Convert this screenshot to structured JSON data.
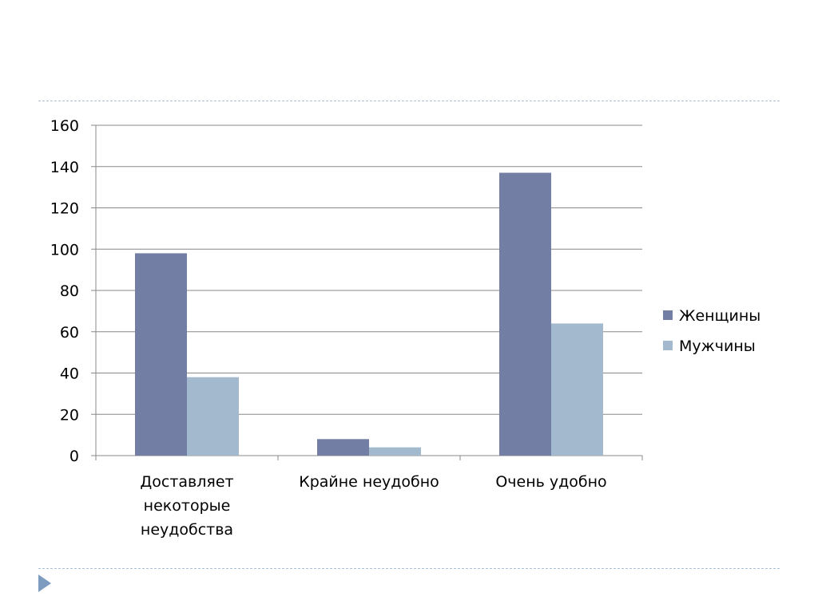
{
  "colors": {
    "series_1": "#727ea3",
    "series_2": "#a3b9ce",
    "gridline": "#888888",
    "divider": "#a9c0d6",
    "nav_arrow": "#7d9cc0"
  },
  "chart_data": {
    "type": "bar",
    "categories": [
      [
        "Доставляет",
        "некоторые",
        "неудобства"
      ],
      [
        "Крайне неудобно"
      ],
      [
        "Очень удобно"
      ]
    ],
    "series": [
      {
        "name": "Женщины",
        "values": [
          98,
          8,
          137
        ]
      },
      {
        "name": "Мужчины",
        "values": [
          38,
          4,
          64
        ]
      }
    ],
    "ylim": [
      0,
      160
    ],
    "yticks": [
      "0",
      "20",
      "40",
      "60",
      "80",
      "100",
      "120",
      "140",
      "160"
    ],
    "grid": true,
    "legend_position": "right",
    "title": "",
    "xlabel": "",
    "ylabel": ""
  },
  "navigation": {
    "next_icon": "triangle-right-icon"
  }
}
